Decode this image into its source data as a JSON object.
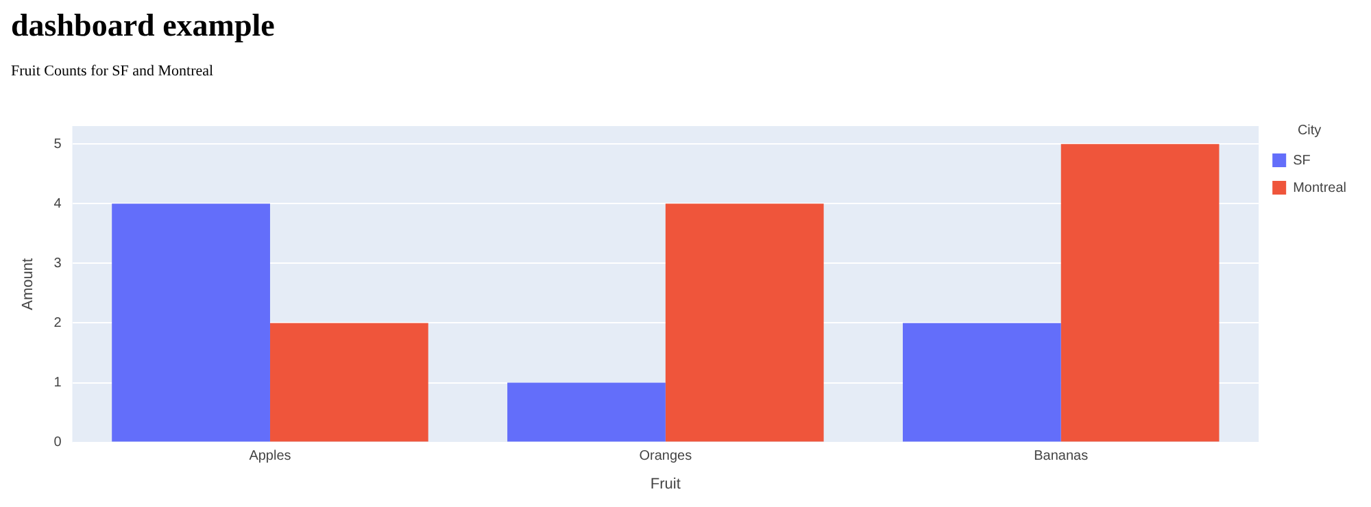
{
  "chart_data": {
    "type": "bar",
    "title": "dashboard example",
    "subtitle": "Fruit Counts for SF and Montreal",
    "xlabel": "Fruit",
    "ylabel": "Amount",
    "legend_title": "City",
    "categories": [
      "Apples",
      "Oranges",
      "Bananas"
    ],
    "series": [
      {
        "name": "SF",
        "color": "#636efa",
        "values": [
          4,
          1,
          2
        ]
      },
      {
        "name": "Montreal",
        "color": "#ef553b",
        "values": [
          2,
          4,
          5
        ]
      }
    ],
    "ylim": [
      0,
      5.3
    ],
    "yticks": [
      0,
      1,
      2,
      3,
      4,
      5
    ],
    "grid": "y",
    "legend": "top right"
  }
}
